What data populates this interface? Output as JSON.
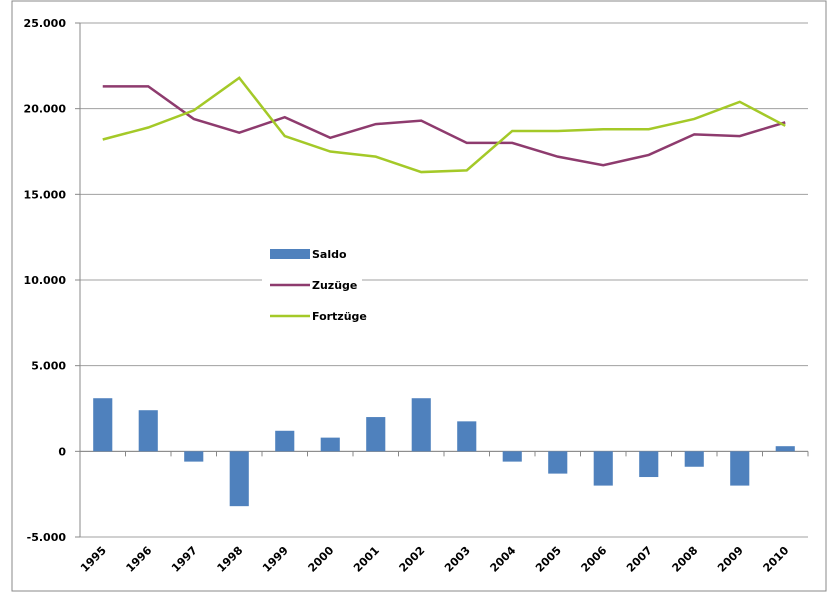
{
  "chart_data": {
    "type": "bar",
    "categories": [
      "1995",
      "1996",
      "1997",
      "1998",
      "1999",
      "2000",
      "2001",
      "2002",
      "2003",
      "2004",
      "2005",
      "2006",
      "2007",
      "2008",
      "2009",
      "2010"
    ],
    "series": [
      {
        "name": "Saldo",
        "type": "bar",
        "color": "#4f81bd",
        "values": [
          3100,
          2400,
          -600,
          -3200,
          1200,
          800,
          2000,
          3100,
          1750,
          -600,
          -1300,
          -2000,
          -1500,
          -900,
          -2000,
          300
        ]
      },
      {
        "name": "Zuzüge",
        "type": "line",
        "color": "#8e3b6e",
        "values": [
          21300,
          21300,
          19400,
          18600,
          19500,
          18300,
          19100,
          19300,
          18000,
          18000,
          17200,
          16700,
          17300,
          18500,
          18400,
          19200
        ]
      },
      {
        "name": "Fortzüge",
        "type": "line",
        "color": "#a4c928",
        "values": [
          18200,
          18900,
          19900,
          21800,
          18400,
          17500,
          17200,
          16300,
          16400,
          18700,
          18700,
          18800,
          18800,
          19400,
          20400,
          19000
        ]
      }
    ],
    "ylim": [
      -5000,
      25000
    ],
    "yticks": [
      {
        "value": -5000,
        "label": "-5.000"
      },
      0,
      {
        "value": 5000,
        "label": "5.000"
      },
      {
        "value": 10000,
        "label": "10.000"
      },
      {
        "value": 15000,
        "label": "15.000"
      },
      {
        "value": 20000,
        "label": "20.000"
      },
      {
        "value": 25000,
        "label": "25.000"
      }
    ],
    "grid": true,
    "legend": "center-left"
  }
}
